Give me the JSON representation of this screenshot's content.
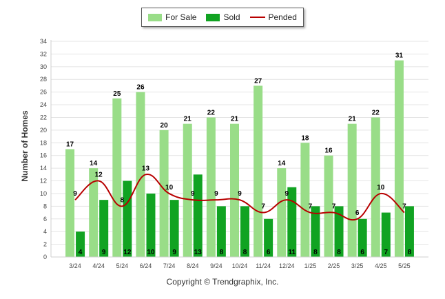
{
  "chart_data": {
    "type": "bar",
    "categories": [
      "3/24",
      "4/24",
      "5/24",
      "6/24",
      "7/24",
      "8/24",
      "9/24",
      "10/24",
      "11/24",
      "12/24",
      "1/25",
      "2/25",
      "3/25",
      "4/25",
      "5/25"
    ],
    "series": [
      {
        "name": "For Sale",
        "type": "bar",
        "color": "#99dd88",
        "values": [
          17,
          14,
          25,
          26,
          20,
          21,
          22,
          21,
          27,
          14,
          18,
          16,
          21,
          22,
          31
        ]
      },
      {
        "name": "Sold",
        "type": "bar",
        "color": "#11a322",
        "values": [
          4,
          9,
          12,
          10,
          9,
          13,
          8,
          8,
          6,
          11,
          8,
          8,
          6,
          7,
          8
        ]
      },
      {
        "name": "Pended",
        "type": "line",
        "color": "#b80000",
        "values": [
          9,
          12,
          8,
          13,
          10,
          9,
          9,
          9,
          7,
          9,
          7,
          7,
          6,
          10,
          7
        ]
      }
    ],
    "ylabel": "Number of Homes",
    "xlabel": "",
    "ylim": [
      0,
      34
    ],
    "yticks": [
      0,
      2,
      4,
      6,
      8,
      10,
      12,
      14,
      16,
      18,
      20,
      22,
      24,
      26,
      28,
      30,
      32,
      34
    ],
    "grid": true,
    "legend_position": "top-center"
  },
  "footer": {
    "copyright": "Copyright © Trendgraphix, Inc."
  }
}
